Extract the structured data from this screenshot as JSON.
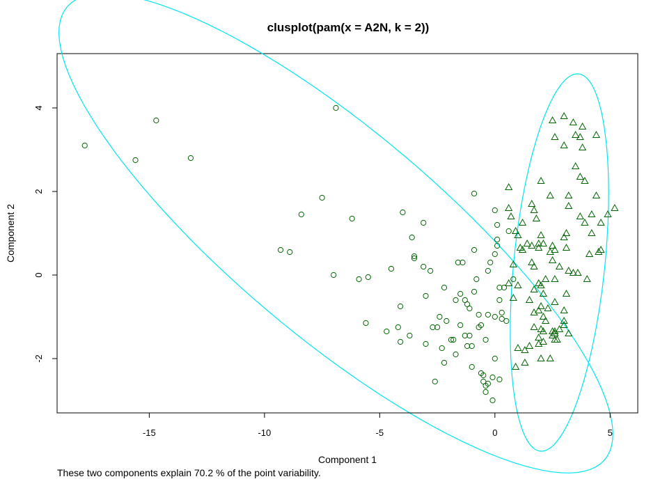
{
  "chart_data": {
    "type": "scatter",
    "title": "clusplot(pam(x = A2N, k = 2))",
    "xlabel": "Component 1",
    "ylabel": "Component 2",
    "subtitle": "These two components explain 70.2 % of the point variability.",
    "xlim": [
      -19,
      6.2
    ],
    "ylim": [
      -3.3,
      5.3
    ],
    "xticks": [
      -15,
      -10,
      -5,
      0,
      5
    ],
    "yticks": [
      -2,
      0,
      2,
      4
    ],
    "grid": false,
    "colors": {
      "points": "#006400",
      "ellipse": "#00e5ee",
      "frame": "#000000"
    },
    "clusters": [
      {
        "marker": "circle",
        "ellipse": {
          "cx": -6.9,
          "cy": 1.0,
          "rx": 13.0,
          "ry": 2.9,
          "angle_deg": -23
        },
        "points": [
          [
            -17.8,
            3.1
          ],
          [
            -15.6,
            2.75
          ],
          [
            -14.7,
            3.7
          ],
          [
            -13.2,
            2.8
          ],
          [
            -6.9,
            4.0
          ],
          [
            -9.3,
            0.6
          ],
          [
            -8.9,
            0.55
          ],
          [
            -8.4,
            1.45
          ],
          [
            -7.5,
            1.85
          ],
          [
            -7.0,
            0.0
          ],
          [
            -6.2,
            1.35
          ],
          [
            -5.9,
            -0.1
          ],
          [
            -5.5,
            -0.05
          ],
          [
            -5.6,
            -1.15
          ],
          [
            -4.7,
            -1.35
          ],
          [
            -4.5,
            0.15
          ],
          [
            -4.2,
            -1.25
          ],
          [
            -4.1,
            -0.75
          ],
          [
            -4.0,
            1.5
          ],
          [
            -4.1,
            -1.6
          ],
          [
            -3.7,
            -1.45
          ],
          [
            -3.6,
            0.9
          ],
          [
            -3.5,
            0.4
          ],
          [
            -3.5,
            0.45
          ],
          [
            -3.1,
            1.25
          ],
          [
            -3.1,
            0.2
          ],
          [
            -3.0,
            -0.5
          ],
          [
            -3.0,
            -1.65
          ],
          [
            -2.8,
            0.1
          ],
          [
            -2.7,
            -1.25
          ],
          [
            -2.6,
            -2.55
          ],
          [
            -2.5,
            -1.25
          ],
          [
            -2.4,
            -1.0
          ],
          [
            -2.3,
            -1.75
          ],
          [
            -2.2,
            -0.3
          ],
          [
            -2.1,
            -1.1
          ],
          [
            -2.2,
            -2.1
          ],
          [
            -1.9,
            -1.55
          ],
          [
            -1.8,
            -1.55
          ],
          [
            -1.7,
            -1.9
          ],
          [
            -1.7,
            -0.6
          ],
          [
            -1.6,
            0.3
          ],
          [
            -1.5,
            -1.2
          ],
          [
            -1.5,
            -0.45
          ],
          [
            -1.4,
            0.3
          ],
          [
            -1.3,
            -0.6
          ],
          [
            -1.3,
            -1.45
          ],
          [
            -1.2,
            -0.7
          ],
          [
            -1.2,
            -1.7
          ],
          [
            -1.1,
            -0.8
          ],
          [
            -1.1,
            -1.45
          ],
          [
            -1.0,
            -2.2
          ],
          [
            -1.0,
            -1.7
          ],
          [
            -0.9,
            0.6
          ],
          [
            -0.9,
            -0.4
          ],
          [
            -0.9,
            1.95
          ],
          [
            -0.8,
            -0.1
          ],
          [
            -0.7,
            -1.25
          ],
          [
            -0.7,
            -0.95
          ],
          [
            -0.6,
            -1.2
          ],
          [
            -0.6,
            -2.35
          ],
          [
            -0.5,
            -2.4
          ],
          [
            -0.5,
            -2.55
          ],
          [
            -0.4,
            -2.65
          ],
          [
            -0.3,
            -2.6
          ],
          [
            -0.4,
            -2.8
          ],
          [
            -0.4,
            -1.55
          ],
          [
            -0.3,
            -0.95
          ],
          [
            -0.3,
            0.1
          ],
          [
            -0.2,
            0.3
          ],
          [
            -0.1,
            -2.45
          ],
          [
            0.0,
            0.5
          ],
          [
            0.0,
            -2.0
          ],
          [
            0.0,
            1.55
          ],
          [
            0.1,
            1.2
          ],
          [
            0.0,
            -1.0
          ],
          [
            0.1,
            0.7
          ],
          [
            0.1,
            0.85
          ],
          [
            0.2,
            -0.6
          ],
          [
            0.2,
            -0.3
          ],
          [
            0.3,
            -0.9
          ],
          [
            0.3,
            -1.05
          ],
          [
            0.2,
            -2.5
          ],
          [
            0.4,
            -0.3
          ],
          [
            0.5,
            -1.1
          ],
          [
            -0.1,
            -3.0
          ],
          [
            0.6,
            1.05
          ],
          [
            0.8,
            -0.1
          ]
        ]
      },
      {
        "marker": "triangle",
        "ellipse": {
          "cx": 2.8,
          "cy": 0.3,
          "rx": 4.6,
          "ry": 1.95,
          "angle_deg": 78
        },
        "points": [
          [
            2.5,
            3.7
          ],
          [
            3.0,
            3.8
          ],
          [
            3.4,
            3.65
          ],
          [
            3.8,
            3.55
          ],
          [
            4.4,
            3.35
          ],
          [
            2.6,
            3.3
          ],
          [
            3.5,
            3.35
          ],
          [
            3.7,
            3.3
          ],
          [
            3.0,
            3.1
          ],
          [
            3.8,
            3.05
          ],
          [
            3.5,
            2.6
          ],
          [
            3.7,
            2.35
          ],
          [
            3.9,
            2.25
          ],
          [
            2.0,
            2.25
          ],
          [
            0.6,
            2.1
          ],
          [
            2.4,
            1.9
          ],
          [
            3.2,
            1.9
          ],
          [
            4.4,
            1.9
          ],
          [
            1.6,
            1.7
          ],
          [
            3.2,
            1.65
          ],
          [
            5.2,
            1.6
          ],
          [
            0.6,
            1.6
          ],
          [
            1.7,
            1.55
          ],
          [
            4.9,
            1.45
          ],
          [
            0.7,
            1.4
          ],
          [
            3.7,
            1.4
          ],
          [
            4.2,
            1.45
          ],
          [
            1.8,
            1.35
          ],
          [
            1.2,
            1.25
          ],
          [
            3.9,
            1.25
          ],
          [
            4.6,
            1.25
          ],
          [
            0.9,
            1.05
          ],
          [
            3.1,
            1.0
          ],
          [
            4.2,
            1.0
          ],
          [
            1.0,
            0.95
          ],
          [
            2.0,
            0.95
          ],
          [
            1.9,
            0.75
          ],
          [
            2.1,
            0.75
          ],
          [
            3.0,
            0.9
          ],
          [
            1.4,
            0.75
          ],
          [
            1.6,
            0.7
          ],
          [
            2.5,
            0.7
          ],
          [
            1.9,
            0.65
          ],
          [
            3.1,
            0.65
          ],
          [
            1.2,
            0.6
          ],
          [
            1.1,
            0.65
          ],
          [
            2.4,
            0.55
          ],
          [
            2.6,
            0.6
          ],
          [
            4.5,
            0.55
          ],
          [
            4.6,
            0.6
          ],
          [
            4.1,
            0.5
          ],
          [
            2.5,
            0.35
          ],
          [
            1.6,
            0.3
          ],
          [
            2.8,
            0.2
          ],
          [
            0.8,
            0.25
          ],
          [
            1.7,
            0.2
          ],
          [
            3.2,
            0.1
          ],
          [
            3.4,
            0.05
          ],
          [
            3.6,
            0.05
          ],
          [
            2.2,
            -0.1
          ],
          [
            2.6,
            -0.1
          ],
          [
            1.9,
            -0.2
          ],
          [
            2.0,
            -0.25
          ],
          [
            4.0,
            -0.1
          ],
          [
            0.6,
            -0.2
          ],
          [
            1.0,
            -0.25
          ],
          [
            1.7,
            -0.35
          ],
          [
            2.1,
            -0.45
          ],
          [
            3.1,
            -0.45
          ],
          [
            0.8,
            -0.55
          ],
          [
            1.5,
            -0.6
          ],
          [
            2.6,
            -0.65
          ],
          [
            2.0,
            -0.75
          ],
          [
            1.9,
            -0.85
          ],
          [
            2.3,
            -0.8
          ],
          [
            3.0,
            -0.85
          ],
          [
            1.7,
            -0.9
          ],
          [
            2.1,
            -1.0
          ],
          [
            2.2,
            -1.1
          ],
          [
            3.0,
            -1.1
          ],
          [
            3.0,
            -1.2
          ],
          [
            1.7,
            -1.25
          ],
          [
            2.0,
            -1.3
          ],
          [
            2.1,
            -1.35
          ],
          [
            2.5,
            -1.35
          ],
          [
            2.6,
            -1.35
          ],
          [
            2.8,
            -1.3
          ],
          [
            1.9,
            -1.5
          ],
          [
            2.5,
            -1.45
          ],
          [
            2.6,
            -1.55
          ],
          [
            2.7,
            -1.55
          ],
          [
            2.6,
            -1.4
          ],
          [
            3.2,
            -1.4
          ],
          [
            2.1,
            -1.6
          ],
          [
            1.5,
            -1.7
          ],
          [
            1.9,
            -1.65
          ],
          [
            1.0,
            -1.75
          ],
          [
            1.3,
            -1.8
          ],
          [
            2.4,
            -2.0
          ],
          [
            2.0,
            -2.0
          ],
          [
            1.3,
            -2.1
          ],
          [
            0.9,
            -2.2
          ]
        ]
      }
    ]
  }
}
